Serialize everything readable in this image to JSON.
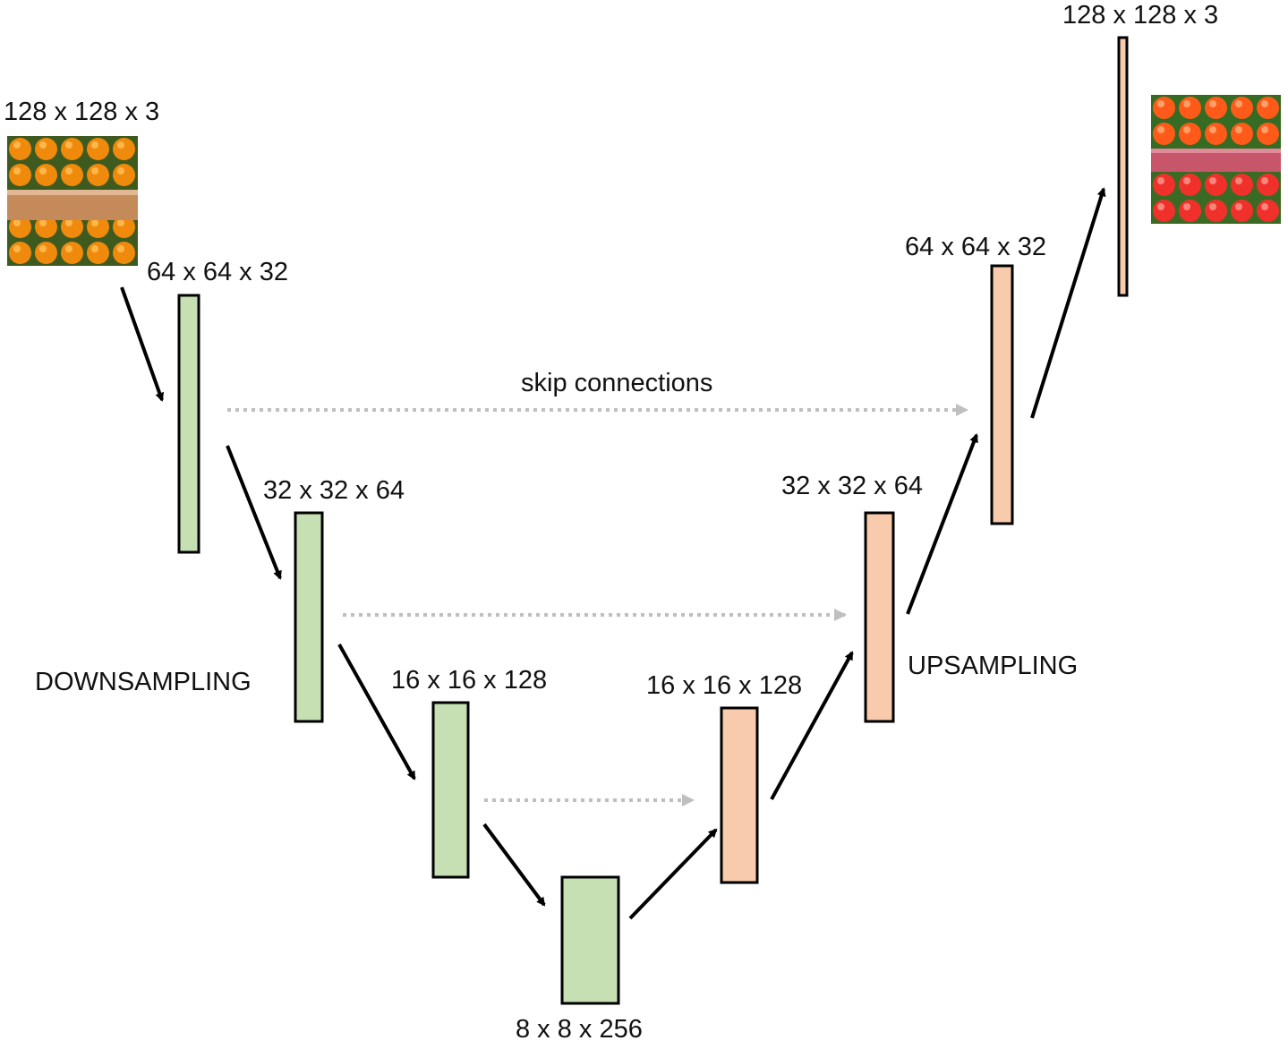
{
  "input": {
    "label": "128 x 128 x 3",
    "image": "orange-fruit-photo"
  },
  "output": {
    "label": "128 x 128 x 3",
    "image": "red-fruit-photo"
  },
  "encoder": {
    "section_label": "DOWNSAMPLING",
    "fill": "#c6e0b4",
    "layers": [
      {
        "label": "64 x 64 x 32"
      },
      {
        "label": "32 x 32 x 64"
      },
      {
        "label": "16 x 16 x 128"
      }
    ]
  },
  "bottleneck": {
    "label": "8 x 8 x 256",
    "fill": "#c6e0b4"
  },
  "decoder": {
    "section_label": "UPSAMPLING",
    "fill": "#f8cbad",
    "layers": [
      {
        "label": "16 x 16 x 128"
      },
      {
        "label": "32 x 32 x 64"
      },
      {
        "label": "64 x 64 x 32"
      },
      {
        "label": "128 x 128 x 3"
      }
    ]
  },
  "skip": {
    "label": "skip connections",
    "color": "#bfbfbf"
  },
  "arrow_color": "#000000"
}
